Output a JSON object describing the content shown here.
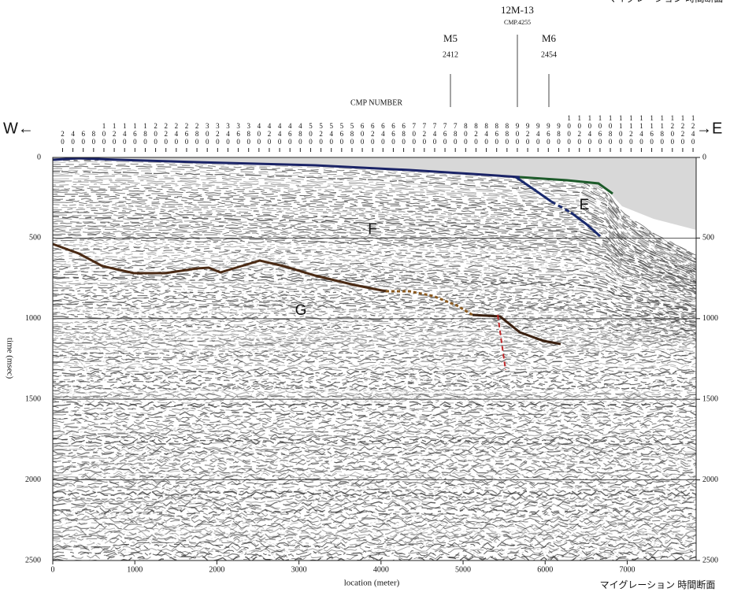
{
  "chart_data": {
    "type": "seismic",
    "x_label": "location (meter)",
    "y_label": "time (msec)",
    "x2_label": "CMP NUMBER",
    "xlim": [
      0,
      7840
    ],
    "xticks": [
      0,
      1000,
      2000,
      3000,
      4000,
      5000,
      6000,
      7000
    ],
    "ylim": [
      0,
      2500
    ],
    "yticks": [
      0,
      500,
      1000,
      1500,
      2000,
      2500
    ],
    "x2lim": [
      1,
      1246
    ],
    "x2ticks": [
      20,
      40,
      60,
      80,
      100,
      120,
      140,
      160,
      180,
      200,
      220,
      240,
      260,
      280,
      300,
      320,
      340,
      360,
      380,
      400,
      420,
      440,
      460,
      480,
      500,
      520,
      540,
      560,
      580,
      600,
      620,
      640,
      660,
      680,
      700,
      720,
      740,
      760,
      780,
      800,
      820,
      840,
      860,
      880,
      900,
      920,
      940,
      960,
      980,
      1000,
      1020,
      1040,
      1060,
      1080,
      1100,
      1120,
      1140,
      1160,
      1180,
      1200,
      1220,
      1240
    ],
    "grid": true,
    "direction_labels": [
      "W←",
      "→E"
    ],
    "markers": [
      {
        "name": "M5",
        "label": "2412"
      },
      {
        "name": "12M-13",
        "label": "CMP.4255"
      },
      {
        "name": "M6",
        "label": "2454"
      }
    ],
    "annotations": [
      "E",
      "F",
      "G"
    ],
    "caption": "マイグレーション 時間断面"
  }
}
